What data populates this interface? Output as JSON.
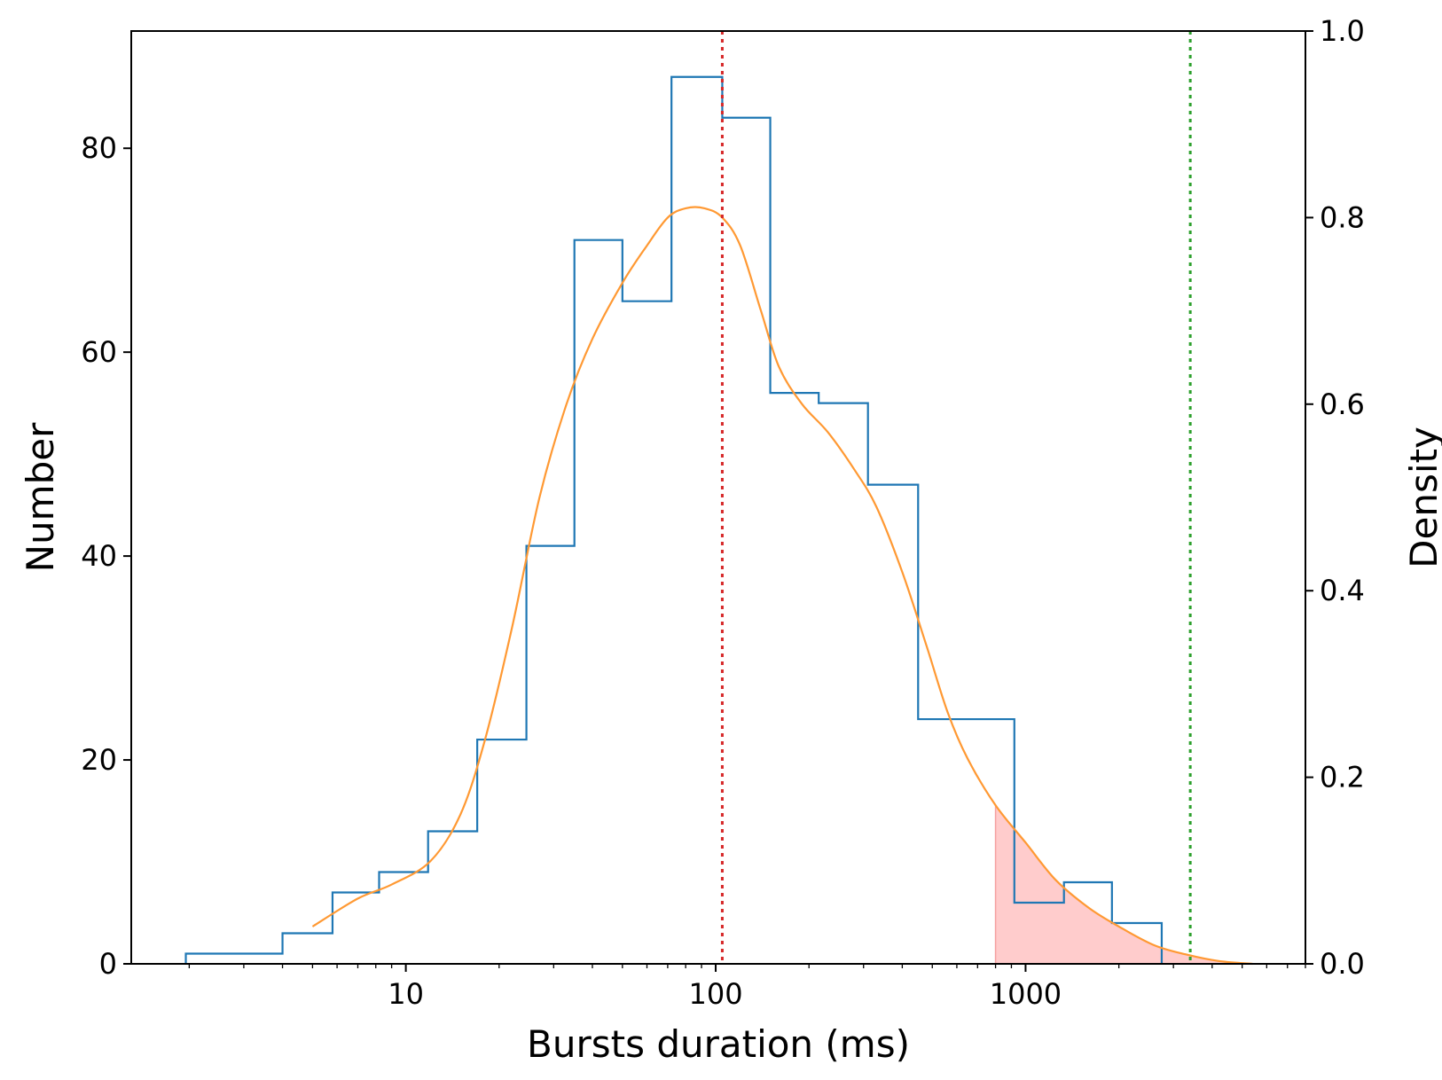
{
  "chart_data": {
    "type": "histogram",
    "xlabel": "Bursts duration (ms)",
    "ylabel": "Number",
    "y2label": "Density",
    "x_scale": "log",
    "xlim": [
      1.3,
      8000
    ],
    "ylim": [
      0,
      91.5
    ],
    "y2lim": [
      0,
      1.0
    ],
    "grid": false,
    "x_ticks": [
      10,
      100,
      1000
    ],
    "x_tick_labels": [
      "10",
      "100",
      "1000"
    ],
    "y_ticks": [
      0,
      20,
      40,
      60,
      80
    ],
    "y_tick_labels": [
      "0",
      "20",
      "40",
      "60",
      "80"
    ],
    "y2_ticks": [
      0.0,
      0.2,
      0.4,
      0.6,
      0.8,
      1.0
    ],
    "y2_tick_labels": [
      "0.0",
      "0.2",
      "0.4",
      "0.6",
      "0.8",
      "1.0"
    ],
    "histogram": {
      "color": "#1f77b4",
      "bin_edges": [
        1.95,
        4.0,
        5.8,
        8.2,
        11.8,
        17.0,
        24.5,
        35.0,
        50.0,
        72.0,
        105.0,
        150.0,
        215.0,
        310.0,
        450.0,
        650.0,
        920.0,
        1330.0,
        1900.0,
        2750.0
      ],
      "counts": [
        1,
        3,
        7,
        9,
        13,
        22,
        41,
        71,
        65,
        87,
        83,
        56,
        55,
        47,
        24,
        24,
        6,
        8,
        4
      ]
    },
    "density_curve": {
      "color": "#ff9933",
      "x": [
        5,
        7,
        9,
        12,
        15,
        18,
        22,
        27,
        33,
        40,
        50,
        60,
        70,
        80,
        92,
        105,
        120,
        140,
        160,
        190,
        230,
        280,
        330,
        400,
        480,
        560,
        650,
        800,
        1000,
        1250,
        1600,
        2000,
        2600,
        3300,
        4200,
        5400
      ],
      "y": [
        0.04,
        0.07,
        0.085,
        0.11,
        0.16,
        0.24,
        0.36,
        0.5,
        0.6,
        0.67,
        0.73,
        0.77,
        0.8,
        0.81,
        0.81,
        0.8,
        0.77,
        0.7,
        0.64,
        0.6,
        0.57,
        0.53,
        0.49,
        0.42,
        0.34,
        0.27,
        0.22,
        0.17,
        0.13,
        0.09,
        0.06,
        0.04,
        0.02,
        0.01,
        0.003,
        0.0
      ]
    },
    "shaded_region": {
      "x_from": 800,
      "x_to": 5400,
      "color": "#ffcccc"
    },
    "vlines": [
      {
        "x": 105,
        "color": "#d62728",
        "style": "dotted"
      },
      {
        "x": 3400,
        "color": "#2ca02c",
        "style": "dotted"
      }
    ]
  }
}
